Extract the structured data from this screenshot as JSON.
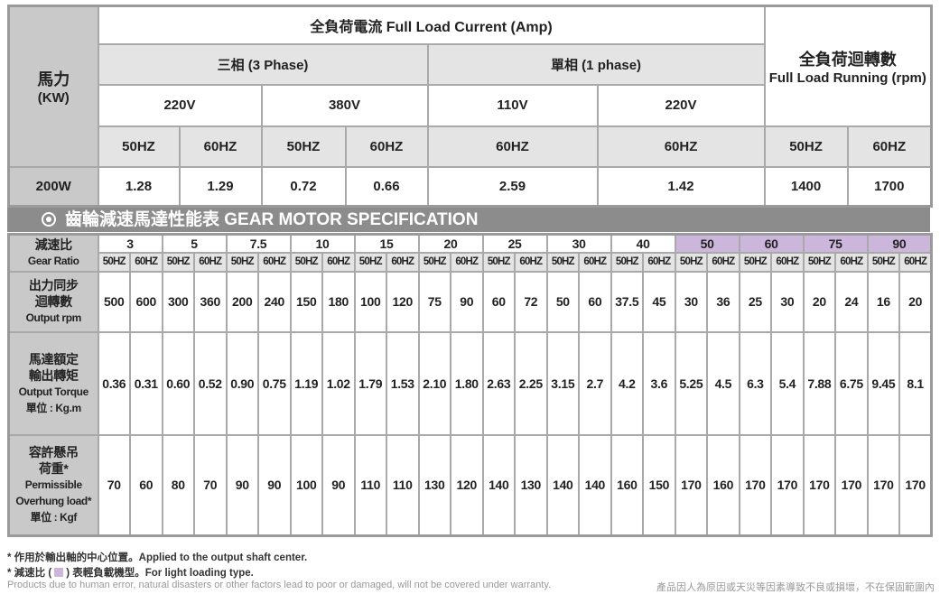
{
  "top": {
    "horsepower": [
      "馬力",
      "(KW)"
    ],
    "current_header": "全負荷電流 Full Load Current (Amp)",
    "running_header": [
      "全負荷迴轉數",
      "Full Load Running (rpm)"
    ],
    "three_phase": "三相 (3 Phase)",
    "single_phase": "單相 (1 phase)",
    "voltages": [
      "220V",
      "380V",
      "110V",
      "220V"
    ],
    "frequencies": [
      "50HZ",
      "60HZ",
      "50HZ",
      "60HZ",
      "60HZ",
      "60HZ",
      "50HZ",
      "60HZ"
    ],
    "row": [
      "200W",
      "1.28",
      "1.29",
      "0.72",
      "0.66",
      "2.59",
      "1.42",
      "1400",
      "1700"
    ]
  },
  "section_title": "齒輪減速馬達性能表 GEAR MOTOR SPECIFICATION",
  "spec": {
    "light_color": "#cdb6dc",
    "ratio_label": [
      "減速比",
      "Gear Ratio"
    ],
    "ratios": [
      {
        "ratio": "3",
        "light": false
      },
      {
        "ratio": "5",
        "light": false
      },
      {
        "ratio": "7.5",
        "light": false
      },
      {
        "ratio": "10",
        "light": false
      },
      {
        "ratio": "15",
        "light": false
      },
      {
        "ratio": "20",
        "light": false
      },
      {
        "ratio": "25",
        "light": false
      },
      {
        "ratio": "30",
        "light": false
      },
      {
        "ratio": "40",
        "light": false
      },
      {
        "ratio": "50",
        "light": true
      },
      {
        "ratio": "60",
        "light": true
      },
      {
        "ratio": "75",
        "light": true
      },
      {
        "ratio": "90",
        "light": true
      }
    ],
    "freq_pair": [
      "50HZ",
      "60HZ"
    ],
    "rows": [
      {
        "label": [
          "出力同步",
          "迴轉數",
          "Output rpm"
        ],
        "values": [
          "500",
          "600",
          "300",
          "360",
          "200",
          "240",
          "150",
          "180",
          "100",
          "120",
          "75",
          "90",
          "60",
          "72",
          "50",
          "60",
          "37.5",
          "45",
          "30",
          "36",
          "25",
          "30",
          "20",
          "24",
          "16",
          "20"
        ]
      },
      {
        "label": [
          "馬達額定",
          "輸出轉矩",
          "Output Torque",
          "單位 : Kg.m"
        ],
        "values": [
          "0.36",
          "0.31",
          "0.60",
          "0.52",
          "0.90",
          "0.75",
          "1.19",
          "1.02",
          "1.79",
          "1.53",
          "2.10",
          "1.80",
          "2.63",
          "2.25",
          "3.15",
          "2.7",
          "4.2",
          "3.6",
          "5.25",
          "4.5",
          "6.3",
          "5.4",
          "7.88",
          "6.75",
          "9.45",
          "8.1"
        ]
      },
      {
        "label": [
          "容許懸吊",
          "荷重*",
          "Permissible",
          "Overhung load*",
          "單位 : Kgf"
        ],
        "values": [
          "70",
          "60",
          "80",
          "70",
          "90",
          "90",
          "100",
          "90",
          "110",
          "110",
          "130",
          "120",
          "140",
          "130",
          "140",
          "140",
          "160",
          "150",
          "170",
          "160",
          "170",
          "170",
          "170",
          "170",
          "170",
          "170"
        ]
      }
    ]
  },
  "notes": {
    "shaft": "* 作用於輸出軸的中心位置。Applied to the output shaft center.",
    "light_before": "* 減速比 (",
    "light_after": ") 表輕負載機型。For light loading type.",
    "warranty_en": "Products due to human error, natural disasters or other factors lead to poor or damaged, will not be covered under warranty.",
    "warranty_zh": "產品因人為原因或天災等因素導致不良或損壞，不在保固範圍內"
  }
}
